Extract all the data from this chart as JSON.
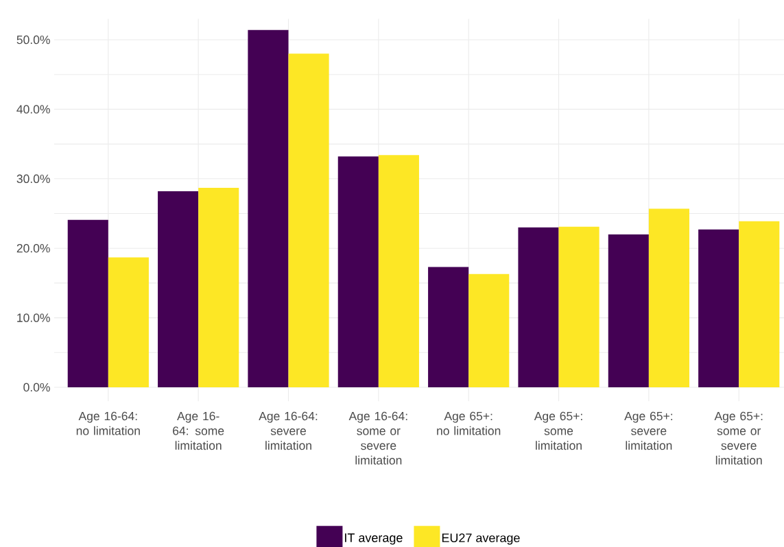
{
  "chart_data": {
    "type": "bar",
    "categories": [
      "Age 16-64: no limitation",
      "Age 16-64: some limitation",
      "Age 16-64: severe limitation",
      "Age 16-64: some or severe limitation",
      "Age 65+: no limitation",
      "Age 65+: some limitation",
      "Age 65+: severe limitation",
      "Age 65+: some or severe limitation"
    ],
    "series": [
      {
        "name": "IT average",
        "color": "#440154",
        "values": [
          24.1,
          28.2,
          51.4,
          33.2,
          17.3,
          23.0,
          22.0,
          22.7
        ]
      },
      {
        "name": "EU27 average",
        "color": "#fde725",
        "values": [
          18.7,
          28.7,
          48.0,
          33.4,
          16.3,
          23.1,
          25.7,
          23.9
        ]
      }
    ],
    "ylim": [
      -2,
      53
    ],
    "yticks": [
      {
        "value": 0,
        "label": "0.0%"
      },
      {
        "value": 5,
        "label": null
      },
      {
        "value": 10,
        "label": "10.0%"
      },
      {
        "value": 15,
        "label": null
      },
      {
        "value": 20,
        "label": "20.0%"
      },
      {
        "value": 25,
        "label": null
      },
      {
        "value": 30,
        "label": "30.0%"
      },
      {
        "value": 35,
        "label": null
      },
      {
        "value": 40,
        "label": "40.0%"
      },
      {
        "value": 45,
        "label": null
      },
      {
        "value": 50,
        "label": "50.0%"
      }
    ],
    "grid": true,
    "legend": "bottom"
  }
}
